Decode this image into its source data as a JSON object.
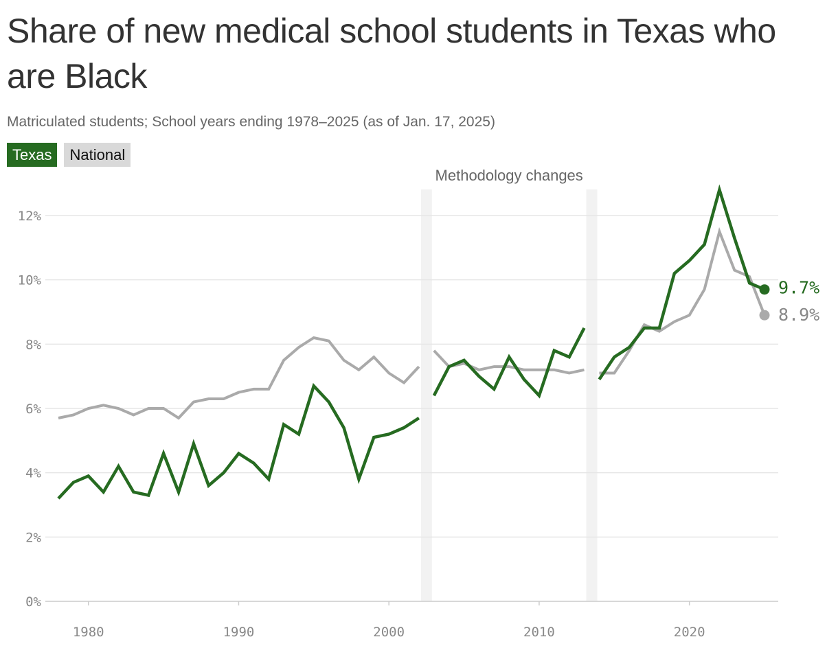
{
  "title": "Share of new medical school students in Texas who are Black",
  "subtitle": "Matriculated students; School years ending 1978–2025 (as of Jan. 17, 2025)",
  "legend": {
    "texas": "Texas",
    "national": "National"
  },
  "colors": {
    "texas": "#266b21",
    "national": "#aaaaaa",
    "band": "#f2f2f2",
    "grid": "#e6e6e6"
  },
  "chart_data": {
    "type": "line",
    "title": "Share of new medical school students in Texas who are Black",
    "subtitle": "Matriculated students; School years ending 1978–2025 (as of Jan. 17, 2025)",
    "xlabel": "",
    "ylabel": "",
    "xlim": [
      1978,
      2025
    ],
    "ylim": [
      0,
      12
    ],
    "xticks": [
      1980,
      1990,
      2000,
      2010,
      2020
    ],
    "xtick_labels": [
      "1980",
      "1990",
      "2000",
      "2010",
      "2020"
    ],
    "yticks": [
      0,
      2,
      4,
      6,
      8,
      10,
      12
    ],
    "ytick_labels": [
      "0%",
      "2%",
      "4%",
      "6%",
      "8%",
      "10%",
      "12%"
    ],
    "grid": true,
    "legend_position": "top-left",
    "annotation": {
      "text": "Methodology changes",
      "breaks_after": [
        2002,
        2013
      ]
    },
    "series": [
      {
        "name": "National",
        "segments": [
          {
            "x": [
              1978,
              1979,
              1980,
              1981,
              1982,
              1983,
              1984,
              1985,
              1986,
              1987,
              1988,
              1989,
              1990,
              1991,
              1992,
              1993,
              1994,
              1995,
              1996,
              1997,
              1998,
              1999,
              2000,
              2001,
              2002
            ],
            "y": [
              5.7,
              5.8,
              6.0,
              6.1,
              6.0,
              5.8,
              6.0,
              6.0,
              5.7,
              6.2,
              6.3,
              6.3,
              6.5,
              6.6,
              6.6,
              7.5,
              7.9,
              8.2,
              8.1,
              7.5,
              7.2,
              7.6,
              7.1,
              6.8,
              7.3
            ]
          },
          {
            "x": [
              2003,
              2004,
              2005,
              2006,
              2007,
              2008,
              2009,
              2010,
              2011,
              2012,
              2013
            ],
            "y": [
              7.8,
              7.3,
              7.4,
              7.2,
              7.3,
              7.3,
              7.2,
              7.2,
              7.2,
              7.1,
              7.2
            ]
          },
          {
            "x": [
              2014,
              2015,
              2016,
              2017,
              2018,
              2019,
              2020,
              2021,
              2022,
              2023,
              2024,
              2025
            ],
            "y": [
              7.1,
              7.1,
              7.8,
              8.6,
              8.4,
              8.7,
              8.9,
              9.7,
              11.5,
              10.3,
              10.1,
              8.9
            ]
          }
        ],
        "end_label": "8.9%"
      },
      {
        "name": "Texas",
        "segments": [
          {
            "x": [
              1978,
              1979,
              1980,
              1981,
              1982,
              1983,
              1984,
              1985,
              1986,
              1987,
              1988,
              1989,
              1990,
              1991,
              1992,
              1993,
              1994,
              1995,
              1996,
              1997,
              1998,
              1999,
              2000,
              2001,
              2002
            ],
            "y": [
              3.2,
              3.7,
              3.9,
              3.4,
              4.2,
              3.4,
              3.3,
              4.6,
              3.4,
              4.9,
              3.6,
              4.0,
              4.6,
              4.3,
              3.8,
              5.5,
              5.2,
              6.7,
              6.2,
              5.4,
              3.8,
              5.1,
              5.2,
              5.4,
              5.7
            ]
          },
          {
            "x": [
              2003,
              2004,
              2005,
              2006,
              2007,
              2008,
              2009,
              2010,
              2011,
              2012,
              2013
            ],
            "y": [
              6.4,
              7.3,
              7.5,
              7.0,
              6.6,
              7.6,
              6.9,
              6.4,
              7.8,
              7.6,
              8.5
            ]
          },
          {
            "x": [
              2014,
              2015,
              2016,
              2017,
              2018,
              2019,
              2020,
              2021,
              2022,
              2023,
              2024,
              2025
            ],
            "y": [
              6.9,
              7.6,
              7.9,
              8.5,
              8.5,
              10.2,
              10.6,
              11.1,
              12.8,
              11.3,
              9.9,
              9.7
            ]
          }
        ],
        "end_label": "9.7%"
      }
    ]
  }
}
